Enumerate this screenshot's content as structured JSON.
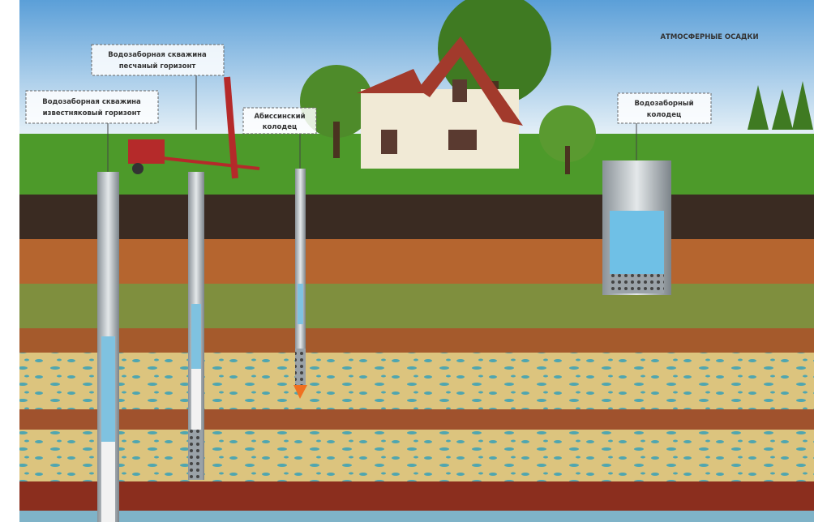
{
  "labels": [
    {
      "lines": [
        "Водозаборная скважина",
        "известняковый горизонт"
      ]
    },
    {
      "lines": [
        "Водозаборная скважина",
        "песчаный горизонт"
      ]
    },
    {
      "lines": [
        "Абиссинский",
        "колодец"
      ]
    },
    {
      "lines": [
        "Водозаборный",
        "колодец"
      ]
    }
  ],
  "annotation": "АТМОСФЕРНЫЕ ОСАДКИ"
}
